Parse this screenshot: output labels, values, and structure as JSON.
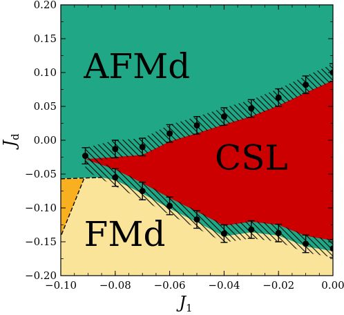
{
  "chart_data": {
    "type": "scatter",
    "xlabel": "J",
    "xlabel_sub": "1",
    "ylabel": "J",
    "ylabel_sub": "d",
    "xlim": [
      -0.1,
      0.0
    ],
    "ylim": [
      -0.2,
      0.2
    ],
    "x_ticks": [
      "−0.10",
      "−0.08",
      "−0.06",
      "−0.04",
      "−0.02",
      "0.00"
    ],
    "y_ticks": [
      "−0.20",
      "−0.15",
      "−0.10",
      "−0.05",
      "0.00",
      "0.05",
      "0.10",
      "0.15",
      "0.20"
    ],
    "x_tick_values": [
      -0.1,
      -0.08,
      -0.06,
      -0.04,
      -0.02,
      0.0
    ],
    "y_tick_values": [
      -0.2,
      -0.15,
      -0.1,
      -0.05,
      0.0,
      0.05,
      0.1,
      0.15,
      0.2
    ],
    "grid": false,
    "colors": {
      "afmd": "#20a886",
      "csl": "#cc0000",
      "fmd": "#fae49a",
      "orange": "#f8b020",
      "hatch": "#000000"
    },
    "regions": [
      {
        "label": "AFMd",
        "label_pos": [
          -0.072,
          0.105
        ]
      },
      {
        "label": "CSL",
        "label_pos": [
          -0.03,
          -0.03
        ]
      },
      {
        "label": "FMd",
        "label_pos": [
          -0.0765,
          -0.143
        ]
      }
    ],
    "upper_boundary": {
      "x": [
        -0.091,
        -0.08,
        -0.07,
        -0.06,
        -0.05,
        -0.04,
        -0.03,
        -0.02,
        -0.01,
        0.0
      ],
      "y": [
        -0.023,
        -0.013,
        -0.01,
        0.01,
        0.022,
        0.035,
        0.047,
        0.063,
        0.082,
        0.1
      ],
      "err": [
        0.012,
        0.013,
        0.013,
        0.013,
        0.013,
        0.013,
        0.013,
        0.013,
        0.013,
        0.013
      ]
    },
    "lower_boundary": {
      "x": [
        -0.08,
        -0.07,
        -0.06,
        -0.05,
        -0.04,
        -0.03,
        -0.02,
        -0.01,
        0.0
      ],
      "y": [
        -0.055,
        -0.075,
        -0.097,
        -0.117,
        -0.138,
        -0.132,
        -0.137,
        -0.153,
        -0.16
      ],
      "err": [
        0.013,
        0.013,
        0.013,
        0.013,
        0.013,
        0.013,
        0.013,
        0.013,
        0.013
      ]
    },
    "afmd_fmd_boundary": {
      "x": [
        -0.1,
        -0.085
      ],
      "y": [
        -0.057,
        -0.055
      ]
    },
    "orange_region": {
      "x": [
        -0.1,
        -0.0915,
        -0.1
      ],
      "y": [
        -0.055,
        -0.057,
        -0.142
      ]
    }
  }
}
